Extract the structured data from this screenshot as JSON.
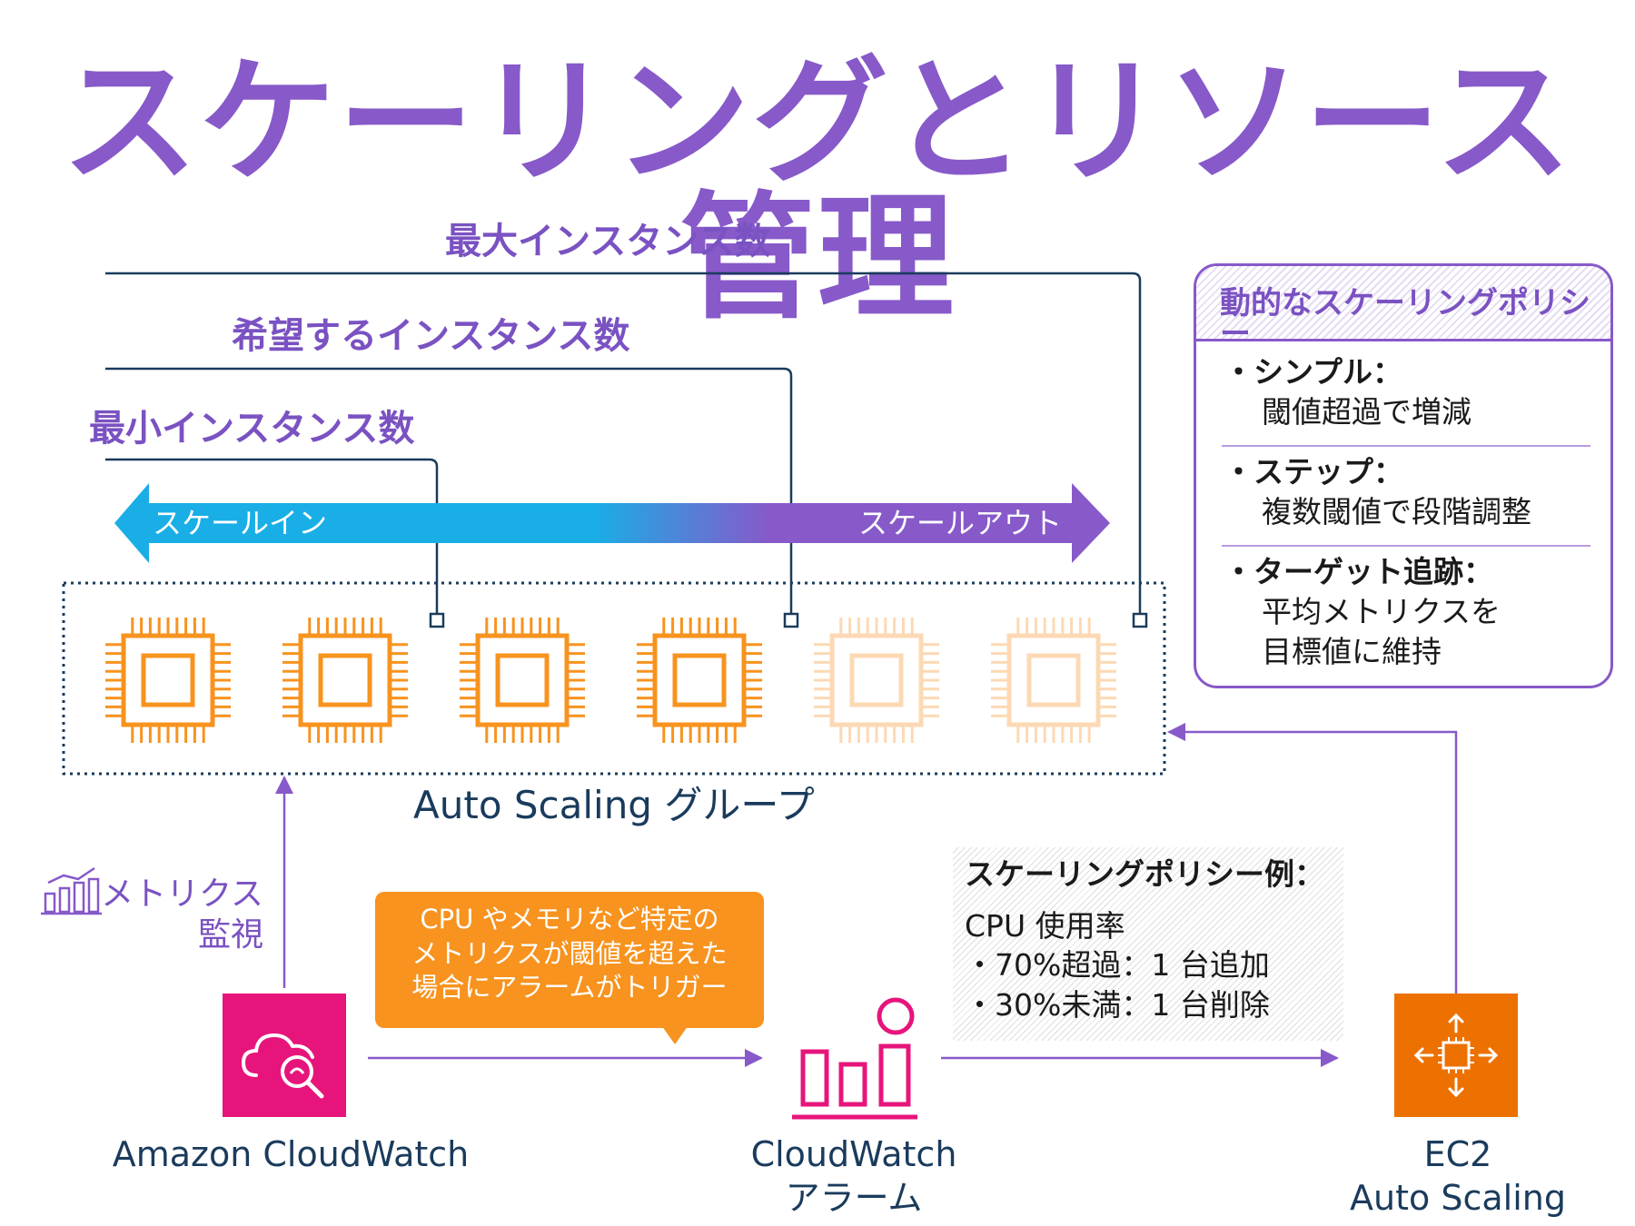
{
  "title": "スケーリングとリソース管理",
  "levels": {
    "max": "最大インスタンス数",
    "desired": "希望するインスタンス数",
    "min": "最小インスタンス数"
  },
  "scale_arrow": {
    "in_label": "スケールイン",
    "out_label": "スケールアウト"
  },
  "instances": [
    {
      "icon": "cpu-chip-icon",
      "state": "active"
    },
    {
      "icon": "cpu-chip-icon",
      "state": "active"
    },
    {
      "icon": "cpu-chip-icon",
      "state": "active"
    },
    {
      "icon": "cpu-chip-icon",
      "state": "active"
    },
    {
      "icon": "cpu-chip-icon",
      "state": "inactive"
    },
    {
      "icon": "cpu-chip-icon",
      "state": "inactive"
    }
  ],
  "asg_label": "Auto Scaling グループ",
  "metrics_label": {
    "line1": "メトリクス",
    "line2": "監視"
  },
  "callout": {
    "line1": "CPU やメモリなど特定の",
    "line2": "メトリクスが閾値を超えた",
    "line3": "場合にアラームがトリガー"
  },
  "policy_example": {
    "title": "スケーリングポリシー例：",
    "line1": "CPU 使用率",
    "line2": "・70%超過：1 台追加",
    "line3": "・30%未満：1 台削除"
  },
  "policy_box": {
    "title": "動的なスケーリングポリシー",
    "items": [
      {
        "heading": "・シンプル：",
        "desc1": "閾値超過で増減",
        "desc2": ""
      },
      {
        "heading": "・ステップ：",
        "desc1": "複数閾値で段階調整",
        "desc2": ""
      },
      {
        "heading": "・ターゲット追跡：",
        "desc1": "平均メトリクスを",
        "desc2": "目標値に維持"
      }
    ]
  },
  "services": {
    "cloudwatch": "Amazon CloudWatch",
    "alarm_line1": "CloudWatch",
    "alarm_line2": "アラーム",
    "ec2_line1": "EC2",
    "ec2_line2": "Auto Scaling"
  },
  "colors": {
    "title": "#8759c9",
    "accent_purple": "#8759c9",
    "scale_in_blue": "#19aee6",
    "chip_orange": "#f7931e",
    "chip_faded": "#fcd9b4",
    "cloudwatch_pink": "#e7157b",
    "ec2_orange": "#ed7100",
    "navy": "#1a3b5c",
    "up_arrow": "#8759c9",
    "down_arrow": "#4aa3e8"
  }
}
